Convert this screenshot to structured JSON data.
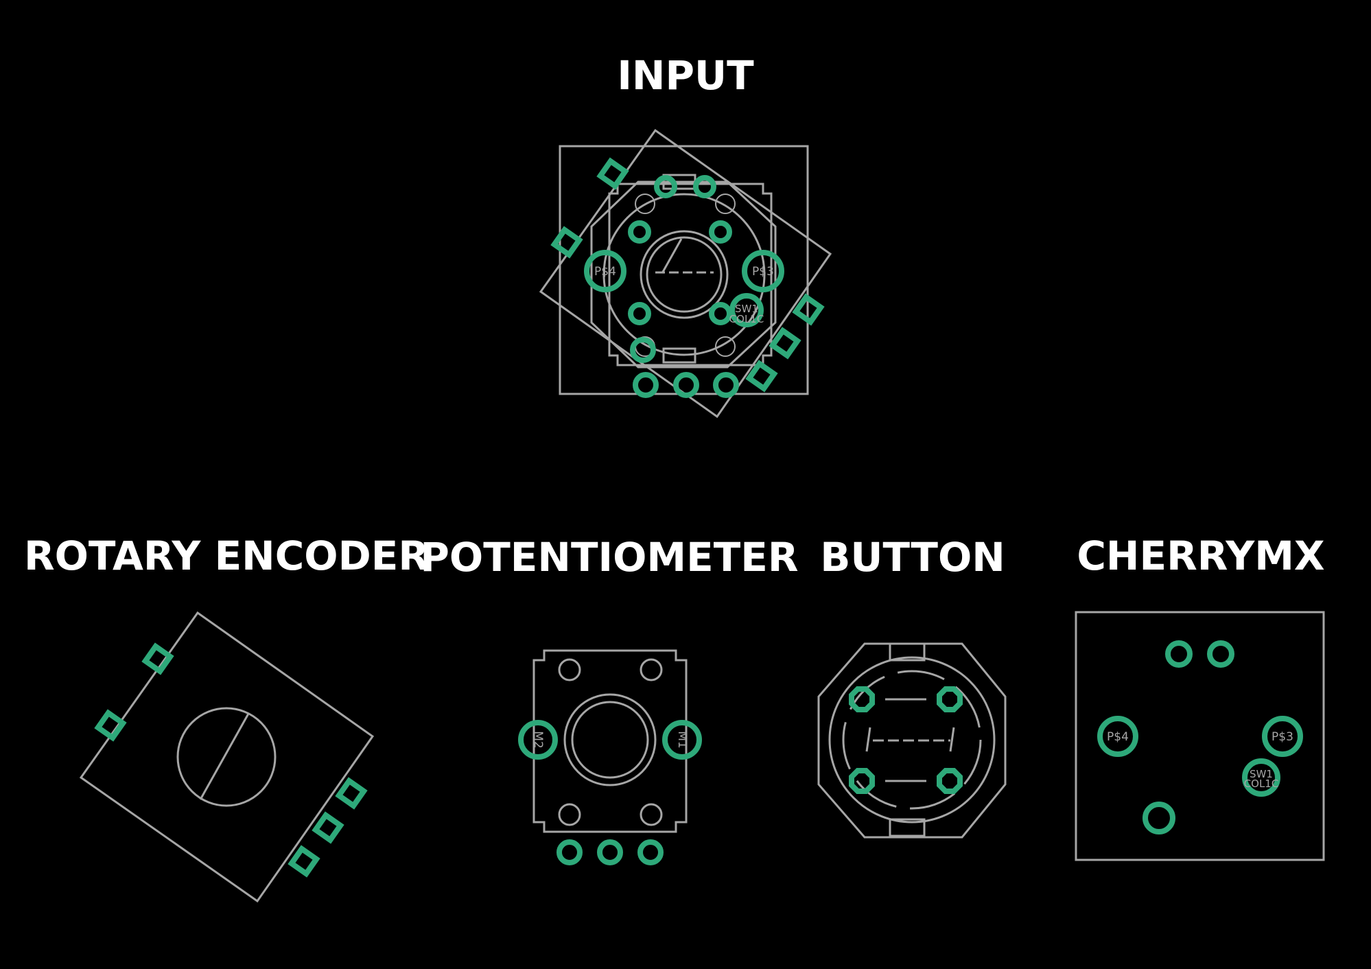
{
  "colors": {
    "background": "#000000",
    "silkscreen": "#a6a6a6",
    "copper_pad": "#2ea97a",
    "title_text": "#ffffff"
  },
  "sections": {
    "input": {
      "title": "INPUT"
    },
    "rotary_encoder": {
      "title": "ROTARY ENCODER"
    },
    "potentiometer": {
      "title": "POTENTIOMETER",
      "pad_labels": {
        "m2": "M2",
        "m1": "M1"
      }
    },
    "button": {
      "title": "BUTTON"
    },
    "cherrymx": {
      "title": "CHERRYMX",
      "pad_labels": {
        "p4": "P$4",
        "p3": "P$3",
        "sw_line1": "SW1",
        "sw_line2": "COL1C"
      }
    }
  },
  "overlay_labels": {
    "p4": "P$4",
    "p3": "P$3",
    "sw_line1": "SW1",
    "sw_line2": "COL1C"
  }
}
